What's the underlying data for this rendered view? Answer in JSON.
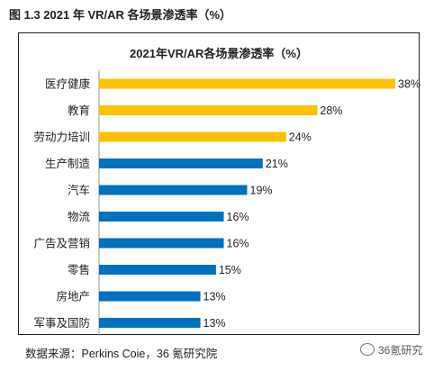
{
  "figure_title": "图 1.3 2021 年 VR/AR 各场景渗透率（%）",
  "source_text": "数据来源：Perkins Coie，36 氪研究院",
  "watermark_text": "36氪研究",
  "colors": {
    "highlight": "#FFC000",
    "normal": "#0070C0",
    "axis": "#999999"
  },
  "chart_data": {
    "type": "bar",
    "orientation": "horizontal",
    "title": "2021年VR/AR各场景渗透率（%）",
    "xlabel": "",
    "ylabel": "",
    "xlim": [
      0,
      38
    ],
    "grid": false,
    "categories": [
      "医疗健康",
      "教育",
      "劳动力培训",
      "生产制造",
      "汽车",
      "物流",
      "广告及营销",
      "零售",
      "房地产",
      "军事及国防"
    ],
    "values": [
      38,
      28,
      24,
      21,
      19,
      16,
      16,
      15,
      13,
      13
    ],
    "value_labels": [
      "38%",
      "28%",
      "24%",
      "21%",
      "19%",
      "16%",
      "16%",
      "15%",
      "13%",
      "13%"
    ],
    "highlighted_count": 3
  }
}
